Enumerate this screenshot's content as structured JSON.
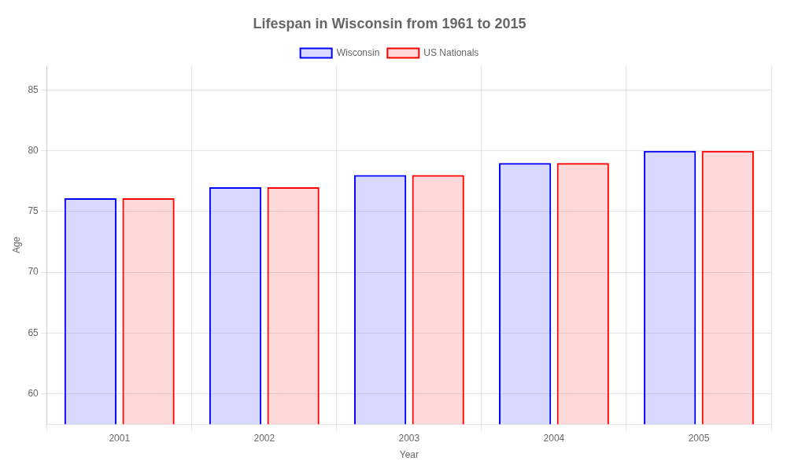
{
  "chart_data": {
    "type": "bar",
    "title": "Lifespan in Wisconsin from 1961 to 2015",
    "xlabel": "Year",
    "ylabel": "Age",
    "categories": [
      "2001",
      "2002",
      "2003",
      "2004",
      "2005"
    ],
    "series": [
      {
        "name": "Wisconsin",
        "color": "#0000ff",
        "values": [
          76.1,
          77.0,
          78.0,
          79.0,
          80.0
        ]
      },
      {
        "name": "US Nationals",
        "color": "#ff0000",
        "values": [
          76.1,
          77.0,
          78.0,
          79.0,
          80.0
        ]
      }
    ],
    "ylim": [
      57.5,
      87
    ],
    "yticks": [
      60,
      65,
      70,
      75,
      80,
      85
    ],
    "grid": true,
    "legend": "top"
  }
}
